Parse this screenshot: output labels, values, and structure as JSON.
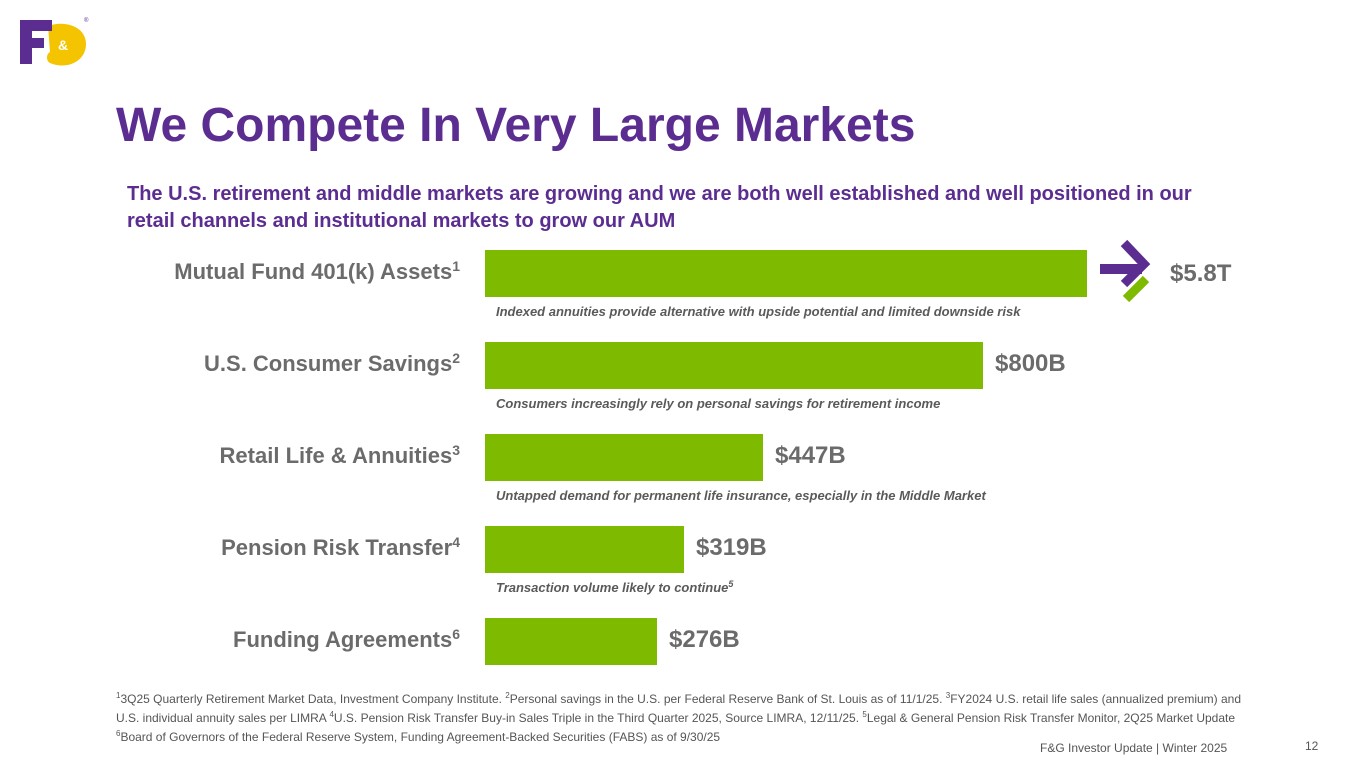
{
  "brand": {
    "logo_text": "F&G",
    "purple": "#5c2d91",
    "green": "#7dba00",
    "gold": "#f5c400"
  },
  "title": "We Compete In Very Large Markets",
  "subtitle": "The U.S. retirement and middle markets are growing and we are both well established and well positioned in our retail channels and institutional markets to grow our AUM",
  "chart_data": {
    "type": "bar",
    "orientation": "horizontal",
    "unit": "USD",
    "categories": [
      "Mutual Fund 401(k) Assets",
      "U.S. Consumer Savings",
      "Retail Life & Annuities",
      "Pension Risk Transfer",
      "Funding Agreements"
    ],
    "category_footnotes": [
      "1",
      "2",
      "3",
      "4",
      "6"
    ],
    "values_billions": [
      5800,
      800,
      447,
      319,
      276
    ],
    "value_labels": [
      "$5.8T",
      "$800B",
      "$447B",
      "$319B",
      "$276B"
    ],
    "axis_break_on_first_bar": true,
    "annotations": [
      {
        "text": "Indexed annuities provide alternative with upside potential and limited downside risk",
        "footnote": ""
      },
      {
        "text": "Consumers increasingly rely on personal savings for retirement income",
        "footnote": ""
      },
      {
        "text": "Untapped demand for permanent life insurance, especially in the Middle Market",
        "footnote": ""
      },
      {
        "text": "Transaction volume likely to continue",
        "footnote": "5"
      }
    ]
  },
  "footnotes": [
    {
      "num": "1",
      "text": "3Q25 Quarterly Retirement Market Data, Investment Company Institute. "
    },
    {
      "num": "2",
      "text": "Personal savings in the U.S. per Federal Reserve Bank of St. Louis as of 11/1/25. "
    },
    {
      "num": "3",
      "text": "FY2024 U.S. retail life sales (annualized premium) and U.S. individual annuity sales per LIMRA "
    },
    {
      "num": "4",
      "text": "U.S. Pension Risk Transfer Buy-in Sales Triple in the Third Quarter 2025, Source LIMRA, 12/11/25. "
    },
    {
      "num": "5",
      "text": "Legal & General Pension Risk Transfer Monitor, 2Q25 Market Update "
    },
    {
      "num": "6",
      "text": "Board of Governors of the Federal Reserve System, Funding Agreement-Backed Securities (FABS) as of 9/30/25"
    }
  ],
  "footer": "F&G Investor Update |  Winter 2025",
  "page_number": "12"
}
